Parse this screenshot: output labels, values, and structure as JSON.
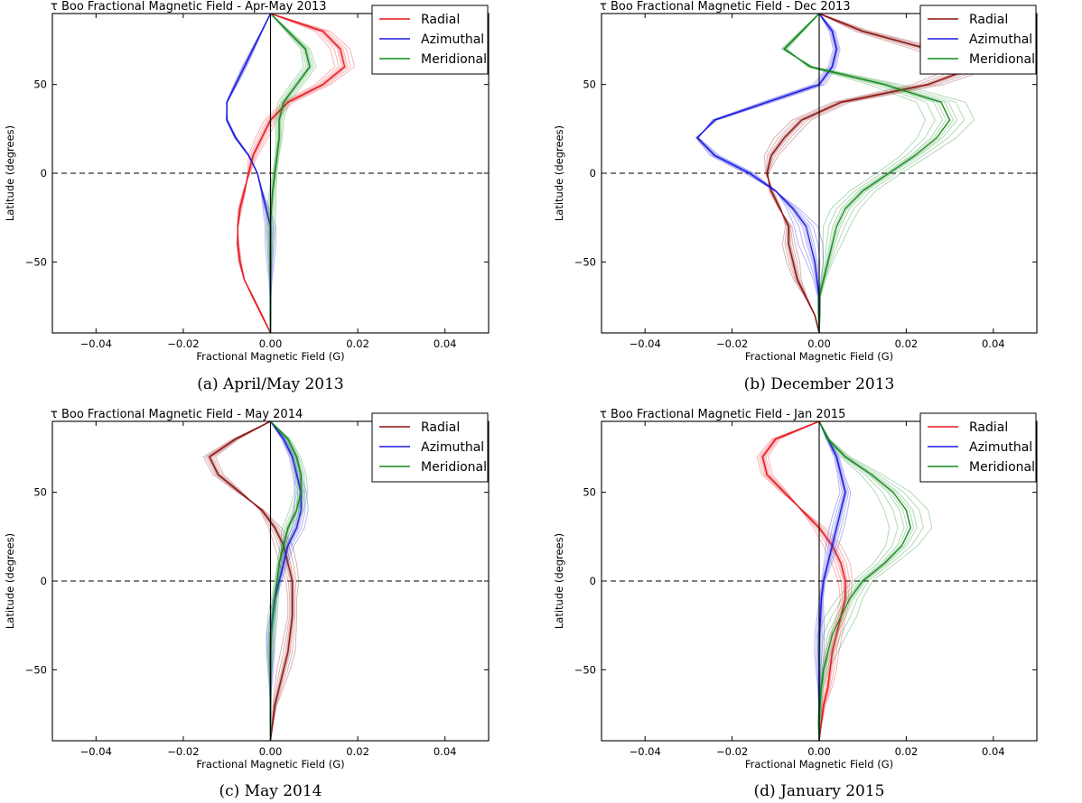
{
  "chart_data": [
    {
      "type": "line",
      "title": "τ Boo Fractional Magnetic Field - Apr-May 2013",
      "caption": "(a)  April/May 2013",
      "xlabel": "Fractional Magnetic Field (G)",
      "ylabel": "Latitude (degrees)",
      "xlim": [
        -0.05,
        0.05
      ],
      "ylim": [
        -90,
        90
      ],
      "xticks": [
        "−0.04",
        "−0.02",
        "0.00",
        "0.02",
        "0.04"
      ],
      "yticks": [
        "50",
        "0",
        "−50"
      ],
      "legend_position": "top-right",
      "series": [
        {
          "name": "Radial",
          "color": "#e8141c",
          "y": [
            90,
            80,
            70,
            60,
            50,
            40,
            30,
            20,
            10,
            0,
            -10,
            -20,
            -30,
            -40,
            -50,
            -60,
            -70,
            -80,
            -90
          ],
          "x": [
            0,
            0.012,
            0.016,
            0.017,
            0.012,
            0.004,
            0.0,
            -0.002,
            -0.004,
            -0.005,
            -0.006,
            -0.007,
            -0.0075,
            -0.0075,
            -0.007,
            -0.006,
            -0.004,
            -0.002,
            0
          ],
          "spread": 0.0018
        },
        {
          "name": "Azimuthal",
          "color": "#1a1ae0",
          "y": [
            90,
            80,
            70,
            60,
            50,
            40,
            30,
            20,
            10,
            0,
            -10,
            -20,
            -30,
            -40,
            -50,
            -60,
            -70,
            -80,
            -90
          ],
          "x": [
            0,
            -0.002,
            -0.004,
            -0.006,
            -0.008,
            -0.01,
            -0.01,
            -0.008,
            -0.005,
            -0.003,
            -0.002,
            -0.001,
            0,
            0,
            0,
            0,
            0,
            0,
            0
          ],
          "spread": 0.0016
        },
        {
          "name": "Meridional",
          "color": "#118a1b",
          "y": [
            90,
            80,
            70,
            60,
            50,
            40,
            30,
            20,
            10,
            0,
            -10,
            -20,
            -30,
            -40,
            -50,
            -60,
            -70,
            -80,
            -90
          ],
          "x": [
            0,
            0.004,
            0.008,
            0.009,
            0.006,
            0.003,
            0.002,
            0.002,
            0.0015,
            0.001,
            0.0005,
            0.0002,
            0,
            0,
            0,
            0,
            0,
            0,
            0
          ],
          "spread": 0.0012
        }
      ]
    },
    {
      "type": "line",
      "title": "τ Boo Fractional Magnetic Field - Dec 2013",
      "caption": "(b)  December 2013",
      "xlabel": "Fractional Magnetic Field (G)",
      "ylabel": "Latitude (degrees)",
      "xlim": [
        -0.05,
        0.05
      ],
      "ylim": [
        -90,
        90
      ],
      "xticks": [
        "−0.04",
        "−0.02",
        "0.00",
        "0.02",
        "0.04"
      ],
      "yticks": [
        "50",
        "0",
        "−50"
      ],
      "legend_position": "top-right",
      "series": [
        {
          "name": "Radial",
          "color": "#8b1010",
          "y": [
            90,
            80,
            70,
            60,
            50,
            40,
            30,
            20,
            10,
            0,
            -10,
            -20,
            -30,
            -40,
            -50,
            -60,
            -70,
            -80,
            -90
          ],
          "x": [
            0,
            0.01,
            0.025,
            0.036,
            0.025,
            0.005,
            -0.004,
            -0.008,
            -0.011,
            -0.012,
            -0.011,
            -0.009,
            -0.007,
            -0.007,
            -0.006,
            -0.005,
            -0.003,
            -0.001,
            0
          ],
          "spread": 0.0035
        },
        {
          "name": "Azimuthal",
          "color": "#1a1ae0",
          "y": [
            90,
            80,
            70,
            60,
            50,
            40,
            30,
            20,
            10,
            0,
            -10,
            -20,
            -30,
            -40,
            -50,
            -60,
            -70,
            -80,
            -90
          ],
          "x": [
            0,
            0.003,
            0.004,
            0.003,
            0.0,
            -0.012,
            -0.024,
            -0.028,
            -0.024,
            -0.016,
            -0.01,
            -0.006,
            -0.003,
            -0.002,
            -0.001,
            -0.0005,
            0,
            0,
            0
          ],
          "spread": 0.004
        },
        {
          "name": "Meridional",
          "color": "#118a1b",
          "y": [
            90,
            80,
            70,
            60,
            50,
            40,
            30,
            20,
            10,
            0,
            -10,
            -20,
            -30,
            -40,
            -50,
            -60,
            -70,
            -80,
            -90
          ],
          "x": [
            0,
            -0.004,
            -0.008,
            -0.002,
            0.015,
            0.028,
            0.03,
            0.027,
            0.022,
            0.016,
            0.01,
            0.006,
            0.004,
            0.003,
            0.002,
            0.001,
            0,
            0,
            0
          ],
          "spread": 0.003
        }
      ]
    },
    {
      "type": "line",
      "title": "τ Boo Fractional Magnetic Field - May 2014",
      "caption": "(c)  May 2014",
      "xlabel": "Fractional Magnetic Field (G)",
      "ylabel": "Latitude (degrees)",
      "xlim": [
        -0.05,
        0.05
      ],
      "ylim": [
        -90,
        90
      ],
      "xticks": [
        "−0.04",
        "−0.02",
        "0.00",
        "0.02",
        "0.04"
      ],
      "yticks": [
        "50",
        "0",
        "−50"
      ],
      "legend_position": "top-right",
      "series": [
        {
          "name": "Radial",
          "color": "#8b1010",
          "y": [
            90,
            80,
            70,
            60,
            50,
            40,
            30,
            20,
            10,
            0,
            -10,
            -20,
            -30,
            -40,
            -50,
            -60,
            -70,
            -80,
            -90
          ],
          "x": [
            0,
            -0.008,
            -0.014,
            -0.012,
            -0.007,
            -0.002,
            0.001,
            0.003,
            0.004,
            0.005,
            0.005,
            0.005,
            0.0045,
            0.004,
            0.003,
            0.002,
            0.001,
            0.0005,
            0
          ],
          "spread": 0.0018
        },
        {
          "name": "Azimuthal",
          "color": "#1a1ae0",
          "y": [
            90,
            80,
            70,
            60,
            50,
            40,
            30,
            20,
            10,
            0,
            -10,
            -20,
            -30,
            -40,
            -50,
            -60,
            -70,
            -80,
            -90
          ],
          "x": [
            0,
            0.003,
            0.005,
            0.006,
            0.007,
            0.007,
            0.006,
            0.004,
            0.003,
            0.002,
            0.001,
            0.0005,
            0,
            0,
            0,
            0,
            0,
            0,
            0
          ],
          "spread": 0.0012
        },
        {
          "name": "Meridional",
          "color": "#118a1b",
          "y": [
            90,
            80,
            70,
            60,
            50,
            40,
            30,
            20,
            10,
            0,
            -10,
            -20,
            -30,
            -40,
            -50,
            -60,
            -70,
            -80,
            -90
          ],
          "x": [
            0,
            0.004,
            0.006,
            0.007,
            0.007,
            0.006,
            0.004,
            0.003,
            0.002,
            0.0015,
            0.001,
            0.0005,
            0.0002,
            0,
            0,
            0,
            0,
            0,
            0
          ],
          "spread": 0.0012
        }
      ]
    },
    {
      "type": "line",
      "title": "τ Boo Fractional Magnetic Field - Jan 2015",
      "caption": "(d)  January 2015",
      "xlabel": "Fractional Magnetic Field (G)",
      "ylabel": "Latitude (degrees)",
      "xlim": [
        -0.05,
        0.05
      ],
      "ylim": [
        -90,
        90
      ],
      "xticks": [
        "−0.04",
        "−0.02",
        "0.00",
        "0.02",
        "0.04"
      ],
      "yticks": [
        "50",
        "0",
        "−50"
      ],
      "legend_position": "top-right",
      "series": [
        {
          "name": "Radial",
          "color": "#e8141c",
          "y": [
            90,
            80,
            70,
            60,
            50,
            40,
            30,
            20,
            10,
            0,
            -10,
            -20,
            -30,
            -40,
            -50,
            -60,
            -70,
            -80,
            -90
          ],
          "x": [
            0,
            -0.01,
            -0.013,
            -0.012,
            -0.008,
            -0.004,
            0.0,
            0.003,
            0.005,
            0.006,
            0.006,
            0.005,
            0.004,
            0.003,
            0.0025,
            0.002,
            0.001,
            0.0005,
            0
          ],
          "spread": 0.0018
        },
        {
          "name": "Azimuthal",
          "color": "#1a1ae0",
          "y": [
            90,
            80,
            70,
            60,
            50,
            40,
            30,
            20,
            10,
            0,
            -10,
            -20,
            -30,
            -40,
            -50,
            -60,
            -70,
            -80,
            -90
          ],
          "x": [
            0,
            0.002,
            0.004,
            0.005,
            0.006,
            0.005,
            0.004,
            0.003,
            0.002,
            0.001,
            0.0005,
            0.0003,
            0.0001,
            0,
            0,
            0,
            0,
            0,
            0
          ],
          "spread": 0.0014
        },
        {
          "name": "Meridional",
          "color": "#118a1b",
          "y": [
            90,
            80,
            70,
            60,
            50,
            40,
            30,
            20,
            10,
            0,
            -10,
            -20,
            -30,
            -40,
            -50,
            -60,
            -70,
            -80,
            -90
          ],
          "x": [
            0,
            0.002,
            0.006,
            0.012,
            0.017,
            0.02,
            0.021,
            0.019,
            0.015,
            0.01,
            0.007,
            0.005,
            0.003,
            0.002,
            0.001,
            0.0005,
            0.0002,
            0,
            0
          ],
          "spread": 0.0035
        }
      ]
    }
  ]
}
